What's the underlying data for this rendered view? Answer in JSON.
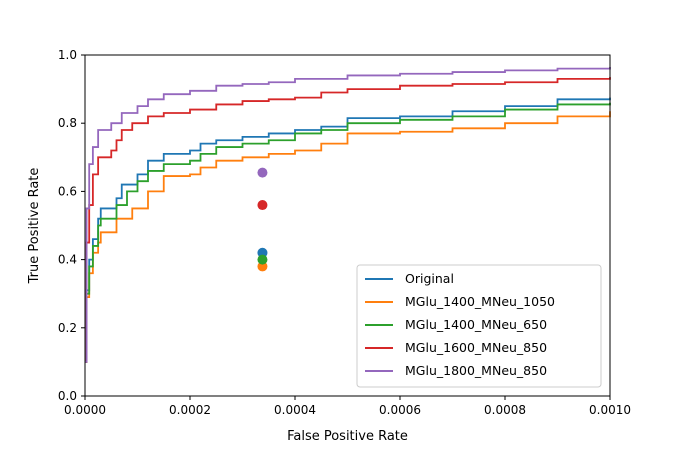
{
  "chart_data": {
    "type": "line",
    "title": "",
    "xlabel": "False Positive Rate",
    "ylabel": "True Positive Rate",
    "xlim": [
      0,
      0.001
    ],
    "ylim": [
      0,
      1.0
    ],
    "x_ticks": [
      0,
      0.0002,
      0.0004,
      0.0006,
      0.0008,
      0.001
    ],
    "x_tick_labels": [
      "0.0000",
      "0.0002",
      "0.0004",
      "0.0006",
      "0.0008",
      "0.0010"
    ],
    "y_ticks": [
      0,
      0.2,
      0.4,
      0.6,
      0.8,
      1.0
    ],
    "y_tick_labels": [
      "0.0",
      "0.2",
      "0.4",
      "0.6",
      "0.8",
      "1.0"
    ],
    "grid": false,
    "legend_placement": "lower-right",
    "series": [
      {
        "name": "Original",
        "color": "#1f77b4",
        "points": [
          [
            0,
            0.1
          ],
          [
            3e-06,
            0.31
          ],
          [
            8e-06,
            0.4
          ],
          [
            1.5e-05,
            0.46
          ],
          [
            2.5e-05,
            0.52
          ],
          [
            3e-05,
            0.55
          ],
          [
            6e-05,
            0.58
          ],
          [
            7e-05,
            0.62
          ],
          [
            0.0001,
            0.65
          ],
          [
            0.00012,
            0.69
          ],
          [
            0.00015,
            0.71
          ],
          [
            0.0002,
            0.72
          ],
          [
            0.00022,
            0.74
          ],
          [
            0.00025,
            0.75
          ],
          [
            0.0003,
            0.76
          ],
          [
            0.00035,
            0.77
          ],
          [
            0.0004,
            0.78
          ],
          [
            0.00045,
            0.79
          ],
          [
            0.0005,
            0.815
          ],
          [
            0.0006,
            0.82
          ],
          [
            0.0007,
            0.835
          ],
          [
            0.0008,
            0.85
          ],
          [
            0.0009,
            0.87
          ],
          [
            0.001,
            0.875
          ]
        ]
      },
      {
        "name": "MGlu_1400_MNeu_1050",
        "color": "#ff7f0e",
        "points": [
          [
            0,
            0.1
          ],
          [
            3e-06,
            0.29
          ],
          [
            8e-06,
            0.36
          ],
          [
            1.5e-05,
            0.42
          ],
          [
            2.5e-05,
            0.45
          ],
          [
            3e-05,
            0.48
          ],
          [
            6e-05,
            0.52
          ],
          [
            9e-05,
            0.55
          ],
          [
            0.00012,
            0.6
          ],
          [
            0.00015,
            0.645
          ],
          [
            0.0002,
            0.65
          ],
          [
            0.00022,
            0.67
          ],
          [
            0.00025,
            0.69
          ],
          [
            0.0003,
            0.7
          ],
          [
            0.00035,
            0.71
          ],
          [
            0.0004,
            0.72
          ],
          [
            0.00045,
            0.74
          ],
          [
            0.0005,
            0.77
          ],
          [
            0.0006,
            0.775
          ],
          [
            0.0007,
            0.785
          ],
          [
            0.0008,
            0.8
          ],
          [
            0.0009,
            0.82
          ],
          [
            0.001,
            0.835
          ]
        ]
      },
      {
        "name": "MGlu_1400_MNeu_650",
        "color": "#2ca02c",
        "points": [
          [
            0,
            0.1
          ],
          [
            3e-06,
            0.3
          ],
          [
            8e-06,
            0.38
          ],
          [
            1.5e-05,
            0.44
          ],
          [
            2.5e-05,
            0.5
          ],
          [
            3e-05,
            0.52
          ],
          [
            6e-05,
            0.56
          ],
          [
            8e-05,
            0.6
          ],
          [
            0.0001,
            0.63
          ],
          [
            0.00012,
            0.66
          ],
          [
            0.00015,
            0.68
          ],
          [
            0.0002,
            0.69
          ],
          [
            0.00022,
            0.71
          ],
          [
            0.00025,
            0.73
          ],
          [
            0.0003,
            0.74
          ],
          [
            0.00035,
            0.75
          ],
          [
            0.0004,
            0.77
          ],
          [
            0.00045,
            0.78
          ],
          [
            0.0005,
            0.8
          ],
          [
            0.0006,
            0.81
          ],
          [
            0.0007,
            0.82
          ],
          [
            0.0008,
            0.84
          ],
          [
            0.0009,
            0.855
          ],
          [
            0.001,
            0.86
          ]
        ]
      },
      {
        "name": "MGlu_1600_MNeu_850",
        "color": "#d62728",
        "points": [
          [
            0,
            0.1
          ],
          [
            3e-06,
            0.45
          ],
          [
            8e-06,
            0.56
          ],
          [
            1.5e-05,
            0.65
          ],
          [
            2.5e-05,
            0.7
          ],
          [
            5e-05,
            0.72
          ],
          [
            6e-05,
            0.75
          ],
          [
            7e-05,
            0.78
          ],
          [
            9e-05,
            0.8
          ],
          [
            0.00012,
            0.82
          ],
          [
            0.00015,
            0.83
          ],
          [
            0.0002,
            0.84
          ],
          [
            0.00025,
            0.855
          ],
          [
            0.0003,
            0.865
          ],
          [
            0.00035,
            0.87
          ],
          [
            0.0004,
            0.875
          ],
          [
            0.00045,
            0.89
          ],
          [
            0.0005,
            0.9
          ],
          [
            0.0006,
            0.91
          ],
          [
            0.0007,
            0.915
          ],
          [
            0.0008,
            0.92
          ],
          [
            0.0009,
            0.93
          ],
          [
            0.001,
            0.935
          ]
        ]
      },
      {
        "name": "MGlu_1800_MNeu_850",
        "color": "#9467bd",
        "points": [
          [
            0,
            0.1
          ],
          [
            3e-06,
            0.55
          ],
          [
            8e-06,
            0.68
          ],
          [
            1.5e-05,
            0.73
          ],
          [
            2.5e-05,
            0.78
          ],
          [
            5e-05,
            0.8
          ],
          [
            7e-05,
            0.83
          ],
          [
            0.0001,
            0.85
          ],
          [
            0.00012,
            0.87
          ],
          [
            0.00015,
            0.885
          ],
          [
            0.0002,
            0.895
          ],
          [
            0.00025,
            0.91
          ],
          [
            0.0003,
            0.915
          ],
          [
            0.00035,
            0.92
          ],
          [
            0.0004,
            0.93
          ],
          [
            0.0005,
            0.94
          ],
          [
            0.0006,
            0.945
          ],
          [
            0.0007,
            0.95
          ],
          [
            0.0008,
            0.955
          ],
          [
            0.0009,
            0.96
          ],
          [
            0.001,
            0.965
          ]
        ]
      }
    ],
    "markers": [
      {
        "series": "Original",
        "x": 0.000338,
        "y": 0.42,
        "color": "#1f77b4"
      },
      {
        "series": "MGlu_1400_MNeu_1050",
        "x": 0.000338,
        "y": 0.38,
        "color": "#ff7f0e"
      },
      {
        "series": "MGlu_1400_MNeu_650",
        "x": 0.000338,
        "y": 0.4,
        "color": "#2ca02c"
      },
      {
        "series": "MGlu_1600_MNeu_850",
        "x": 0.000338,
        "y": 0.56,
        "color": "#d62728"
      },
      {
        "series": "MGlu_1800_MNeu_850",
        "x": 0.000338,
        "y": 0.655,
        "color": "#9467bd"
      }
    ]
  }
}
